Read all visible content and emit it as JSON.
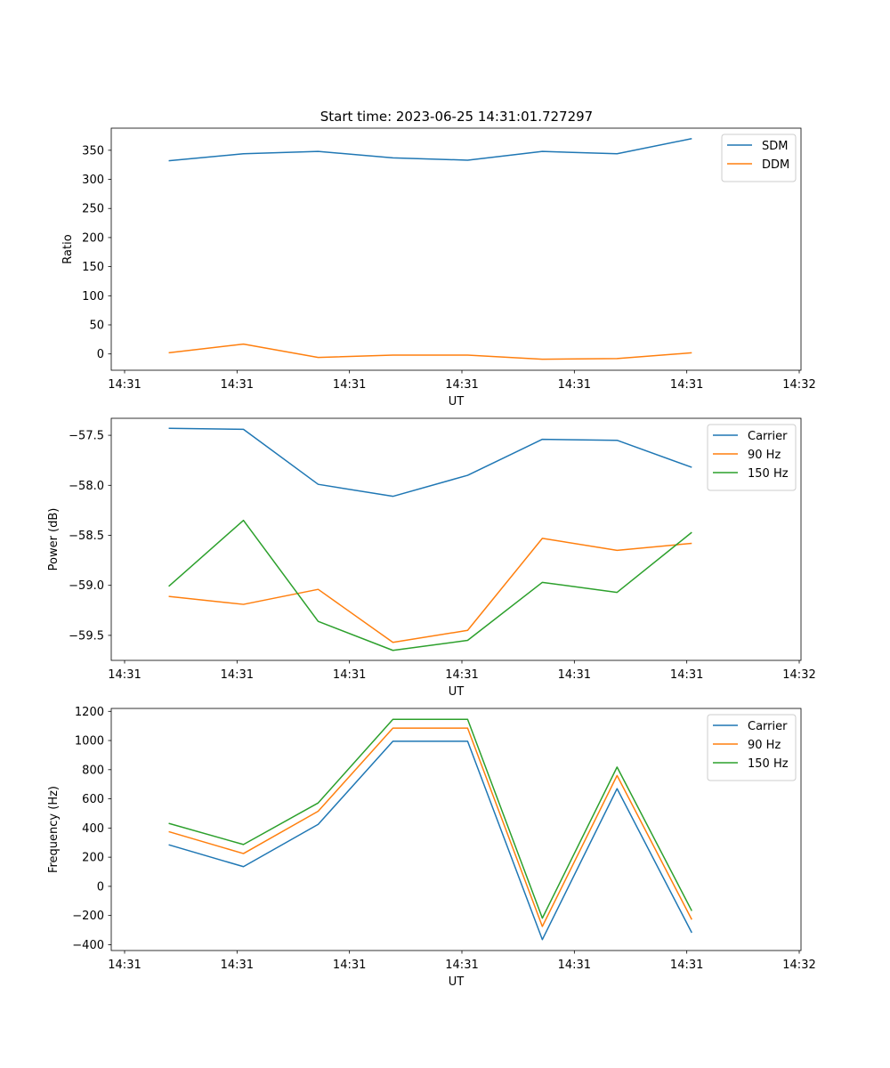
{
  "figure_title": "Start time: 2023-06-25 14:31:01.727297",
  "chart_data": [
    {
      "type": "line",
      "title": "Start time: 2023-06-25 14:31:01.727297",
      "xlabel": "UT",
      "ylabel": "Ratio",
      "x_tick_labels": [
        "14:31",
        "14:31",
        "14:31",
        "14:31",
        "14:31",
        "14:31",
        "14:32"
      ],
      "x_range": [
        0,
        6
      ],
      "x": [
        0.5,
        1.15,
        1.8,
        2.45,
        3.1,
        3.75,
        4.4,
        5.05
      ],
      "y_ticks": [
        0,
        50,
        100,
        150,
        200,
        250,
        300,
        350
      ],
      "ylim": [
        -28,
        388
      ],
      "legend_position": "upper right",
      "series": [
        {
          "name": "SDM",
          "color": "#1f77b4",
          "values": [
            332,
            344,
            348,
            337,
            333,
            348,
            344,
            370
          ]
        },
        {
          "name": "DDM",
          "color": "#ff7f0e",
          "values": [
            2,
            17,
            -6,
            -2,
            -2,
            -9,
            -8,
            2
          ]
        }
      ]
    },
    {
      "type": "line",
      "title": "",
      "xlabel": "UT",
      "ylabel": "Power (dB)",
      "x_tick_labels": [
        "14:31",
        "14:31",
        "14:31",
        "14:31",
        "14:31",
        "14:31",
        "14:32"
      ],
      "x_range": [
        0,
        6
      ],
      "x": [
        0.5,
        1.15,
        1.8,
        2.45,
        3.1,
        3.75,
        4.4,
        5.05
      ],
      "y_ticks": [
        -59.5,
        -59.0,
        -58.5,
        -58.0,
        -57.5
      ],
      "y_tick_labels": [
        "−59.5",
        "−59.0",
        "−58.5",
        "−58.0",
        "−57.5"
      ],
      "ylim": [
        -59.75,
        -57.33
      ],
      "legend_position": "upper right",
      "series": [
        {
          "name": "Carrier",
          "color": "#1f77b4",
          "values": [
            -57.43,
            -57.44,
            -57.99,
            -58.11,
            -57.9,
            -57.54,
            -57.55,
            -57.82
          ]
        },
        {
          "name": "90 Hz",
          "color": "#ff7f0e",
          "values": [
            -59.11,
            -59.19,
            -59.04,
            -59.57,
            -59.45,
            -58.53,
            -58.65,
            -58.58
          ]
        },
        {
          "name": "150 Hz",
          "color": "#2ca02c",
          "values": [
            -59.01,
            -58.35,
            -59.36,
            -59.65,
            -59.55,
            -58.97,
            -59.07,
            -58.47
          ]
        }
      ]
    },
    {
      "type": "line",
      "title": "",
      "xlabel": "UT",
      "ylabel": "Frequency (Hz)",
      "x_tick_labels": [
        "14:31",
        "14:31",
        "14:31",
        "14:31",
        "14:31",
        "14:31",
        "14:32"
      ],
      "x_range": [
        0,
        6
      ],
      "x": [
        0.5,
        1.15,
        1.8,
        2.45,
        3.1,
        3.75,
        4.4,
        5.05
      ],
      "y_ticks": [
        -400,
        -200,
        0,
        200,
        400,
        600,
        800,
        1000,
        1200
      ],
      "y_tick_labels": [
        "−400",
        "−200",
        "0",
        "200",
        "400",
        "600",
        "800",
        "1000",
        "1200"
      ],
      "ylim": [
        -440,
        1220
      ],
      "legend_position": "upper right",
      "series": [
        {
          "name": "Carrier",
          "color": "#1f77b4",
          "values": [
            285,
            135,
            425,
            995,
            995,
            -365,
            670,
            -318
          ]
        },
        {
          "name": "90 Hz",
          "color": "#ff7f0e",
          "values": [
            375,
            225,
            515,
            1085,
            1085,
            -275,
            760,
            -228
          ]
        },
        {
          "name": "150 Hz",
          "color": "#2ca02c",
          "values": [
            432,
            287,
            572,
            1145,
            1145,
            -218,
            818,
            -168
          ]
        }
      ]
    }
  ]
}
